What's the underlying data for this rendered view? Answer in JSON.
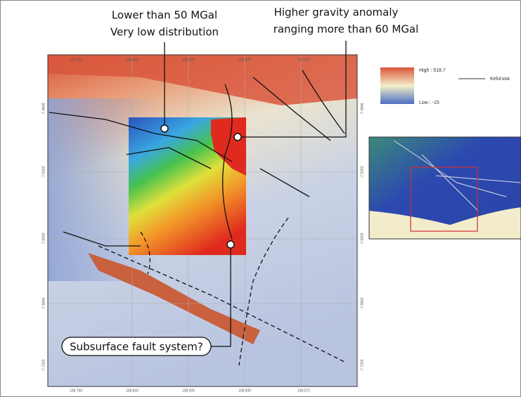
{
  "annotations": {
    "low_line1": "Lower than 50 MGal",
    "low_line2": "Very low distribution",
    "high_line1": "Higher gravity anomaly",
    "high_line2": "ranging more than 60 MGal",
    "fault": "Subsurface fault system?"
  },
  "legend": {
    "high": "High : 518.7",
    "low": "Low : -15",
    "line": "Kelurusa"
  },
  "map": {
    "lon_ticks": [
      "108.760",
      "108.843",
      "108.926",
      "108.999",
      "109.072"
    ],
    "lat_ticks": [
      "-7.4666",
      "-7.5333",
      "-7.6000",
      "-7.6666",
      "-7.7333"
    ]
  }
}
